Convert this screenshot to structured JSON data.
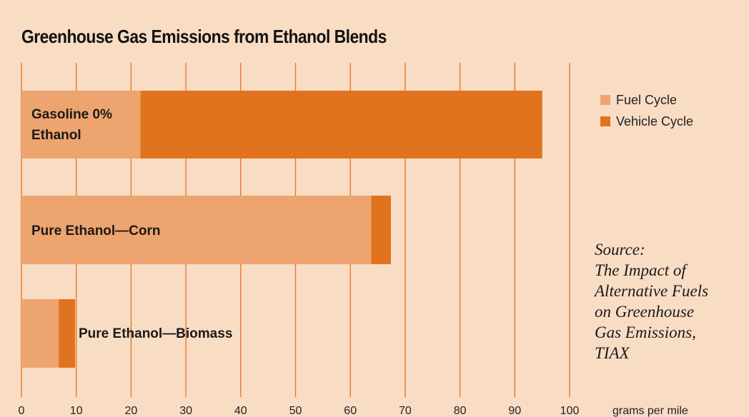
{
  "chart_data": {
    "type": "bar",
    "orientation": "horizontal",
    "stacked": true,
    "title": "Greenhouse Gas Emissions from Ethanol Blends",
    "xlabel": "grams per mile",
    "ylabel": "",
    "xlim": [
      0,
      100
    ],
    "xticks": [
      "0",
      "10",
      "20",
      "30",
      "40",
      "50",
      "60",
      "70",
      "80",
      "90",
      "100"
    ],
    "grid": true,
    "legend_position": "right",
    "categories": [
      "Gasoline 0% Ethanol",
      "Pure Ethanol—Corn",
      "Pure Ethanol—Biomass"
    ],
    "series": [
      {
        "name": "Fuel Cycle",
        "color": "#eea46e",
        "values": [
          21.7,
          63.8,
          6.8
        ]
      },
      {
        "name": "Vehicle Cycle",
        "color": "#e2731e",
        "values": [
          73.3,
          3.6,
          3.0
        ]
      }
    ],
    "source_text": "Source:\nThe Impact of\nAlternative Fuels\non Greenhouse\nGas Emissions,\nTIAX"
  },
  "colors": {
    "background": "#f9dcc4",
    "gridline": "#e2731e"
  }
}
